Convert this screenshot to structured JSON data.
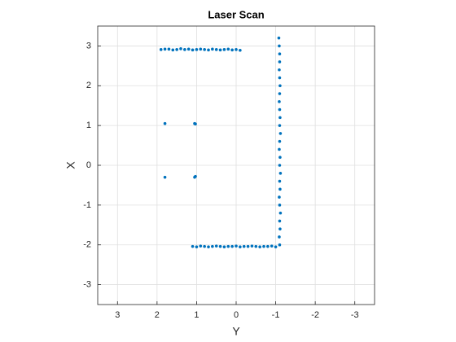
{
  "chart_data": {
    "type": "scatter",
    "title": "Laser Scan",
    "x_label": "Y",
    "y_label": "X",
    "x_reversed": true,
    "grid": true,
    "color": "#0072bd",
    "xlim": [
      -3.5,
      3.5
    ],
    "ylim": [
      -3.5,
      3.5
    ],
    "xticks": [
      3,
      2,
      1,
      0,
      -1,
      -2,
      -3
    ],
    "yticks": [
      -3,
      -2,
      -1,
      0,
      1,
      2,
      3
    ],
    "x": [
      1.9,
      1.8,
      1.7,
      1.6,
      1.5,
      1.4,
      1.3,
      1.2,
      1.1,
      1.0,
      0.9,
      0.8,
      0.7,
      0.6,
      0.5,
      0.4,
      0.3,
      0.2,
      0.1,
      0.0,
      -0.1,
      -1.1,
      -1.09,
      -1.11,
      -1.1,
      -1.12,
      -1.1,
      -1.09,
      -1.11,
      -1.1,
      -1.12,
      -1.1,
      -1.11,
      -1.09,
      -1.1,
      -1.12,
      -1.1,
      -1.11,
      -1.1,
      -1.09,
      -1.1,
      -1.11,
      -1.1,
      -1.09,
      -1.1,
      -1.1,
      -1.09,
      -1.08,
      1.1,
      1.0,
      0.9,
      0.8,
      0.7,
      0.6,
      0.5,
      0.4,
      0.3,
      0.2,
      0.1,
      0.0,
      -0.1,
      -0.2,
      -0.3,
      -0.4,
      -0.5,
      -0.6,
      -0.7,
      -0.8,
      -0.9,
      -1.0,
      1.8,
      1.05,
      1.03,
      1.8,
      1.05,
      1.03
    ],
    "y": [
      2.91,
      2.92,
      2.92,
      2.9,
      2.91,
      2.93,
      2.91,
      2.92,
      2.9,
      2.91,
      2.92,
      2.91,
      2.9,
      2.92,
      2.91,
      2.9,
      2.91,
      2.92,
      2.9,
      2.91,
      2.89,
      -2.0,
      -1.8,
      -1.6,
      -1.4,
      -1.2,
      -1.0,
      -0.8,
      -0.6,
      -0.4,
      -0.2,
      0,
      0.2,
      0.4,
      0.6,
      0.8,
      1.0,
      1.2,
      1.4,
      1.6,
      1.8,
      2.0,
      2.2,
      2.4,
      2.6,
      2.8,
      3.0,
      3.2,
      -2.04,
      -2.05,
      -2.03,
      -2.04,
      -2.05,
      -2.04,
      -2.03,
      -2.04,
      -2.05,
      -2.04,
      -2.04,
      -2.03,
      -2.05,
      -2.04,
      -2.04,
      -2.03,
      -2.04,
      -2.05,
      -2.04,
      -2.04,
      -2.03,
      -2.05,
      1.05,
      1.05,
      1.04,
      -0.3,
      -0.3,
      -0.28
    ]
  }
}
